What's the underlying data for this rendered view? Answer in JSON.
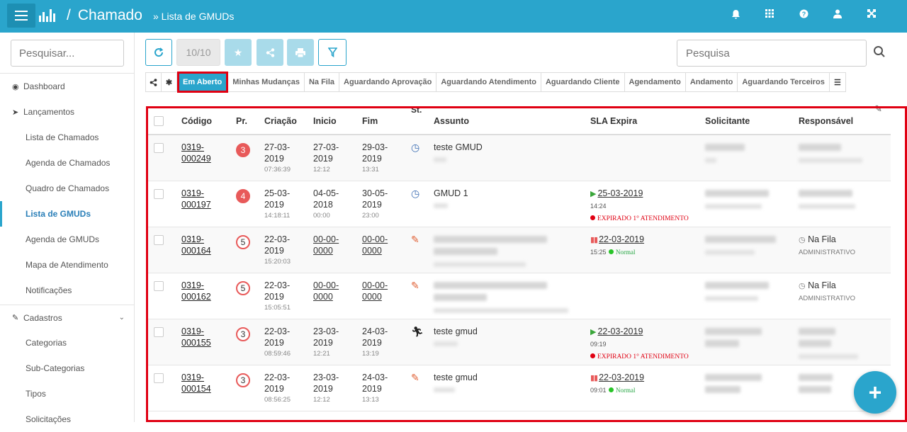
{
  "header": {
    "title": "Chamado",
    "separator": "/",
    "subtitle": "» Lista de GMUDs"
  },
  "sidebar": {
    "search_placeholder": "Pesquisar...",
    "items": [
      {
        "label": "Dashboard"
      },
      {
        "label": "Lançamentos"
      },
      {
        "label": "Lista de Chamados"
      },
      {
        "label": "Agenda de Chamados"
      },
      {
        "label": "Quadro de Chamados"
      },
      {
        "label": "Lista de GMUDs"
      },
      {
        "label": "Agenda de GMUDs"
      },
      {
        "label": "Mapa de Atendimento"
      },
      {
        "label": "Notificações"
      },
      {
        "label": "Cadastros"
      },
      {
        "label": "Categorias"
      },
      {
        "label": "Sub-Categorias"
      },
      {
        "label": "Tipos"
      },
      {
        "label": "Solicitações"
      }
    ]
  },
  "toolbar": {
    "count": "10/10",
    "search_placeholder": "Pesquisa"
  },
  "tabs": [
    "Em Aberto",
    "Minhas Mudanças",
    "Na Fila",
    "Aguardando Aprovação",
    "Aguardando Atendimento",
    "Aguardando Cliente",
    "Agendamento",
    "Andamento",
    "Aguardando Terceiros"
  ],
  "table": {
    "headers": {
      "codigo": "Código",
      "pr": "Pr.",
      "criacao": "Criação",
      "inicio": "Inicio",
      "fim": "Fim",
      "st": "St.",
      "assunto": "Assunto",
      "sla": "SLA Expira",
      "solicitante": "Solicitante",
      "responsavel": "Responsável"
    },
    "rows": [
      {
        "code1": "0319-",
        "code2": "000249",
        "pr": "3",
        "c1": "27-03-",
        "c2": "2019",
        "c3": "07:36:39",
        "i1": "27-03-",
        "i2": "2019",
        "i3": "12:12",
        "f1": "29-03-",
        "f2": "2019",
        "f3": "13:31",
        "assunto": "teste GMUD",
        "sla_date": "",
        "sla_time": "",
        "sla_status": "",
        "resp": "",
        "resp_sub": ""
      },
      {
        "code1": "0319-",
        "code2": "000197",
        "pr": "4",
        "c1": "25-03-",
        "c2": "2019",
        "c3": "14:18:11",
        "i1": "04-05-",
        "i2": "2018",
        "i3": "00:00",
        "f1": "30-05-",
        "f2": "2019",
        "f3": "23:00",
        "assunto": "GMUD 1",
        "sla_date": "25-03-2019",
        "sla_time": "14:24",
        "sla_status": "EXPIRADO 1° ATENDIMENTO",
        "resp": "",
        "resp_sub": ""
      },
      {
        "code1": "0319-",
        "code2": "000164",
        "pr": "5",
        "c1": "22-03-",
        "c2": "2019",
        "c3": "15:20:03",
        "i1": "00-00-",
        "i2": "0000",
        "i3": "",
        "f1": "00-00-",
        "f2": "0000",
        "f3": "",
        "assunto": "",
        "sla_date": "22-03-2019",
        "sla_time": "15:25",
        "sla_status": "Normal",
        "resp": "Na Fila",
        "resp_sub": "ADMINISTRATIVO"
      },
      {
        "code1": "0319-",
        "code2": "000162",
        "pr": "5",
        "c1": "22-03-",
        "c2": "2019",
        "c3": "15:05:51",
        "i1": "00-00-",
        "i2": "0000",
        "i3": "",
        "f1": "00-00-",
        "f2": "0000",
        "f3": "",
        "assunto": "",
        "sla_date": "",
        "sla_time": "",
        "sla_status": "",
        "resp": "Na Fila",
        "resp_sub": "ADMINISTRATIVO"
      },
      {
        "code1": "0319-",
        "code2": "000155",
        "pr": "3",
        "c1": "22-03-",
        "c2": "2019",
        "c3": "08:59:46",
        "i1": "23-03-",
        "i2": "2019",
        "i3": "12:21",
        "f1": "24-03-",
        "f2": "2019",
        "f3": "13:19",
        "assunto": "teste gmud",
        "sla_date": "22-03-2019",
        "sla_time": "09:19",
        "sla_status": "EXPIRADO 1° ATENDIMENTO",
        "resp": "",
        "resp_sub": ""
      },
      {
        "code1": "0319-",
        "code2": "000154",
        "pr": "3",
        "c1": "22-03-",
        "c2": "2019",
        "c3": "08:56:25",
        "i1": "23-03-",
        "i2": "2019",
        "i3": "12:12",
        "f1": "24-03-",
        "f2": "2019",
        "f3": "13:13",
        "assunto": "teste gmud",
        "sla_date": "22-03-2019",
        "sla_time": "09:01",
        "sla_status": "Normal",
        "resp": "",
        "resp_sub": ""
      }
    ]
  },
  "fab_label": "+"
}
